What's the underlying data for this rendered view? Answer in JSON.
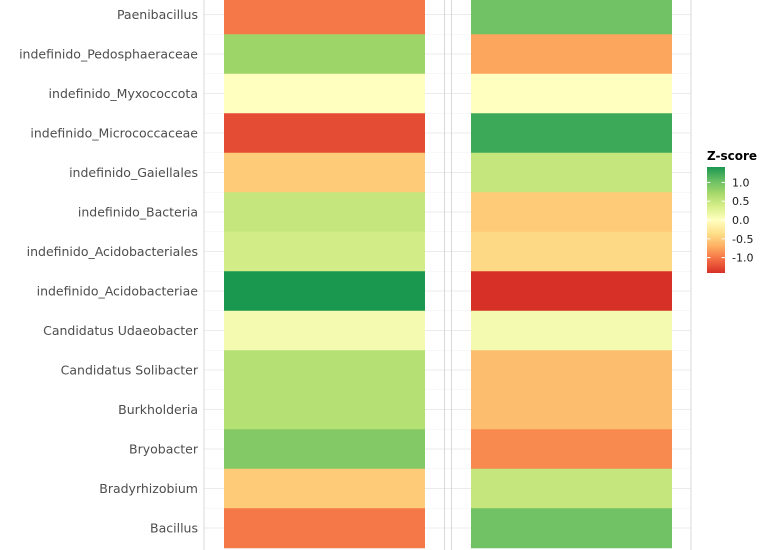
{
  "chart_data": {
    "type": "heatmap",
    "rows": [
      "Paenibacillus",
      "indefinido_Pedosphaeraceae",
      "indefinido_Myxococcota",
      "indefinido_Micrococcaceae",
      "indefinido_Gaiellales",
      "indefinido_Bacteria",
      "indefinido_Acidobacteriales",
      "indefinido_Acidobacteriae",
      "Candidatus Udaeobacter",
      "Candidatus Solibacter",
      "Burkholderia",
      "Bryobacter",
      "Bradyrhizobium",
      "Bacillus"
    ],
    "columns": [
      "",
      ""
    ],
    "values": [
      [
        -1.0,
        1.0
      ],
      [
        0.75,
        -0.75
      ],
      [
        0.0,
        0.0
      ],
      [
        -1.25,
        1.25
      ],
      [
        -0.5,
        0.5
      ],
      [
        0.5,
        -0.5
      ],
      [
        0.4,
        -0.4
      ],
      [
        1.41,
        -1.41
      ],
      [
        0.1,
        0.1
      ],
      [
        0.6,
        -0.6
      ],
      [
        0.6,
        -0.6
      ],
      [
        0.9,
        -0.9
      ],
      [
        -0.5,
        0.5
      ],
      [
        -1.0,
        1.0
      ]
    ],
    "legend": {
      "title": "Z-score",
      "ticks": [
        {
          "value": 1.0,
          "label": "1.0"
        },
        {
          "value": 0.5,
          "label": "0.5"
        },
        {
          "value": 0.0,
          "label": "0.0"
        },
        {
          "value": -0.5,
          "label": "-0.5"
        },
        {
          "value": -1.0,
          "label": "-1.0"
        }
      ],
      "range": [
        -1.41,
        1.41
      ],
      "placement": "right"
    },
    "color_scale": [
      "#d73027",
      "#f46d43",
      "#fdae61",
      "#fee08b",
      "#ffffbf",
      "#d9ef8b",
      "#a6d96a",
      "#66bd63",
      "#1a9850"
    ],
    "grid": true
  }
}
